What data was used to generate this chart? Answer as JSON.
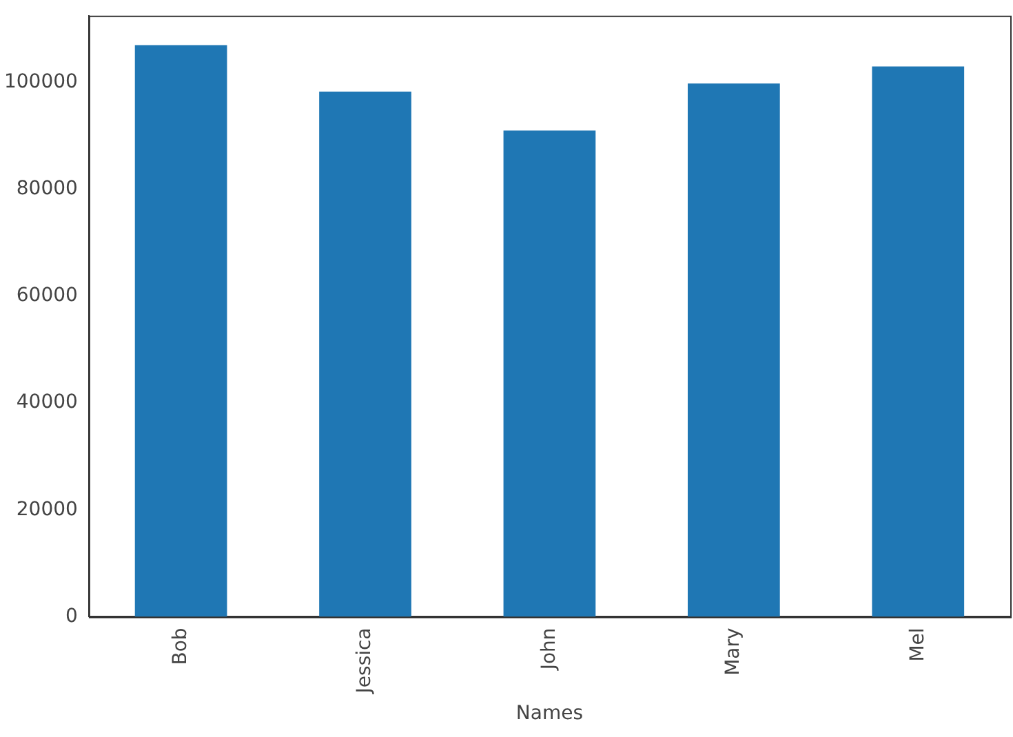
{
  "chart_data": {
    "type": "bar",
    "xlabel": "Names",
    "categories": [
      "Bob",
      "Jessica",
      "John",
      "Mary",
      "Mel"
    ],
    "values": [
      107000,
      98300,
      91000,
      99800,
      103000
    ],
    "color": "#1f77b4",
    "ylim": [
      0,
      112500
    ],
    "yticks": [
      0,
      20000,
      40000,
      60000,
      80000,
      100000
    ],
    "grid": false,
    "legend": false
  }
}
